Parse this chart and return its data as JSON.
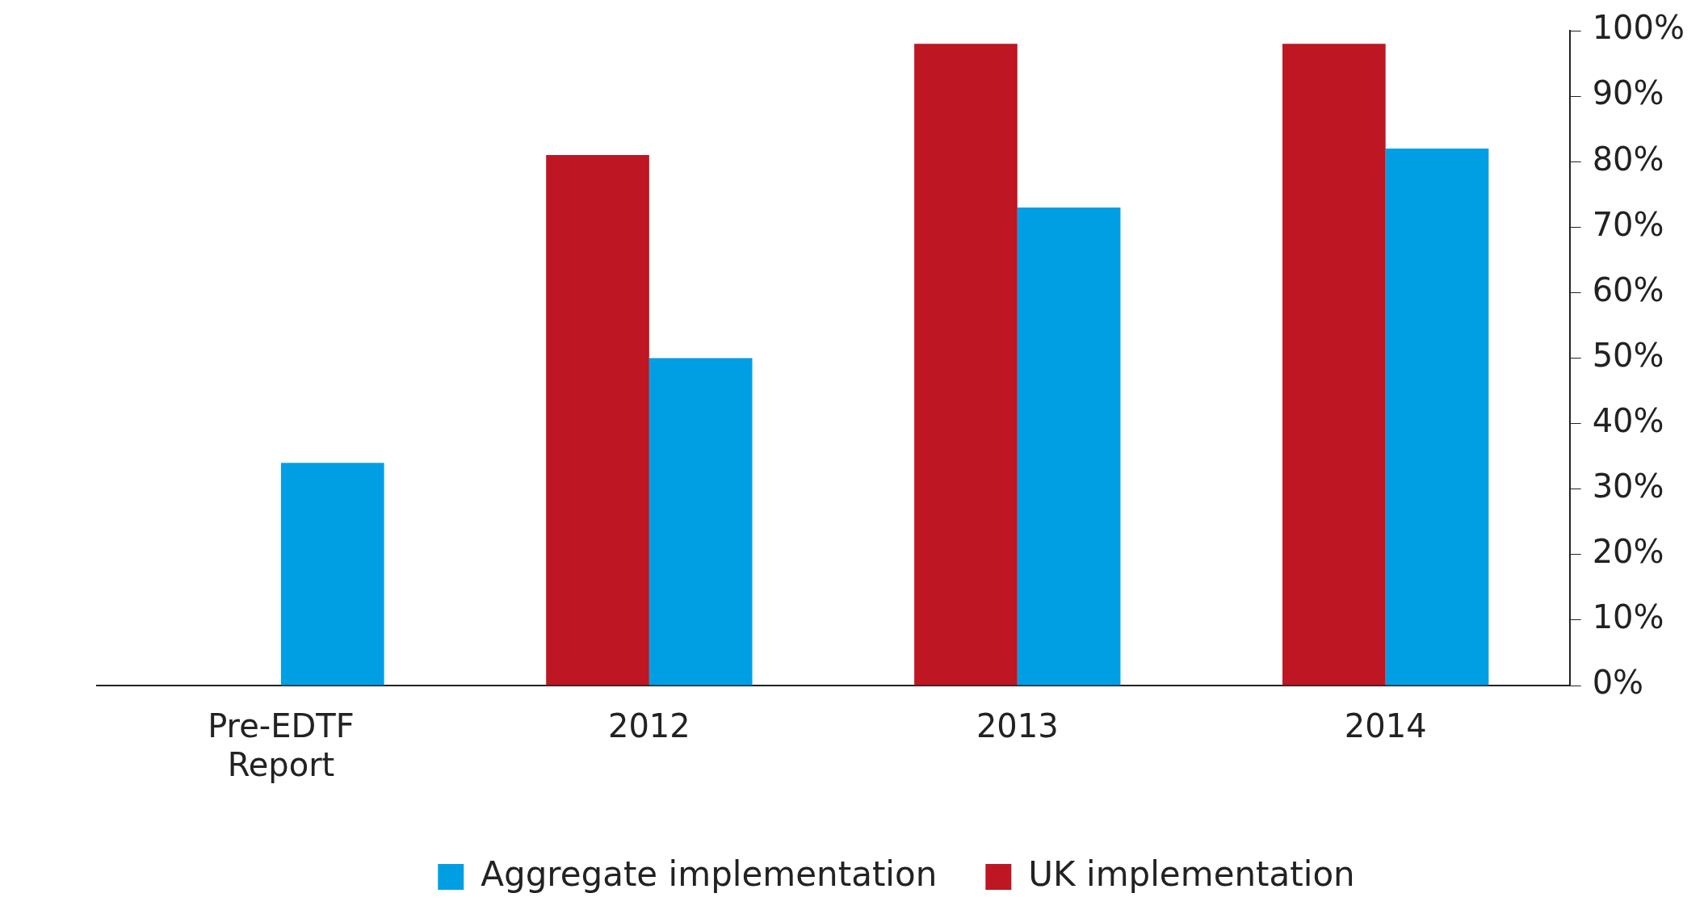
{
  "chart_data": {
    "type": "bar",
    "categories": [
      "Pre-EDTF Report",
      "2012",
      "2013",
      "2014"
    ],
    "series": [
      {
        "name": "UK implementation",
        "color": "#be1622",
        "values": [
          null,
          81,
          98,
          98
        ]
      },
      {
        "name": "Aggregate implementation",
        "color": "#009fe3",
        "values": [
          34,
          50,
          73,
          82
        ]
      }
    ],
    "ylim": [
      0,
      100
    ],
    "yticks": [
      {
        "value": 0,
        "label": "0%"
      },
      {
        "value": 10,
        "label": "10%"
      },
      {
        "value": 20,
        "label": "20%"
      },
      {
        "value": 30,
        "label": "30%"
      },
      {
        "value": 40,
        "label": "40%"
      },
      {
        "value": 50,
        "label": "50%"
      },
      {
        "value": 60,
        "label": "60%"
      },
      {
        "value": 70,
        "label": "70%"
      },
      {
        "value": 80,
        "label": "80%"
      },
      {
        "value": 90,
        "label": "90%"
      },
      {
        "value": 100,
        "label": "100%"
      }
    ],
    "grid": false,
    "legend": "bottom"
  }
}
